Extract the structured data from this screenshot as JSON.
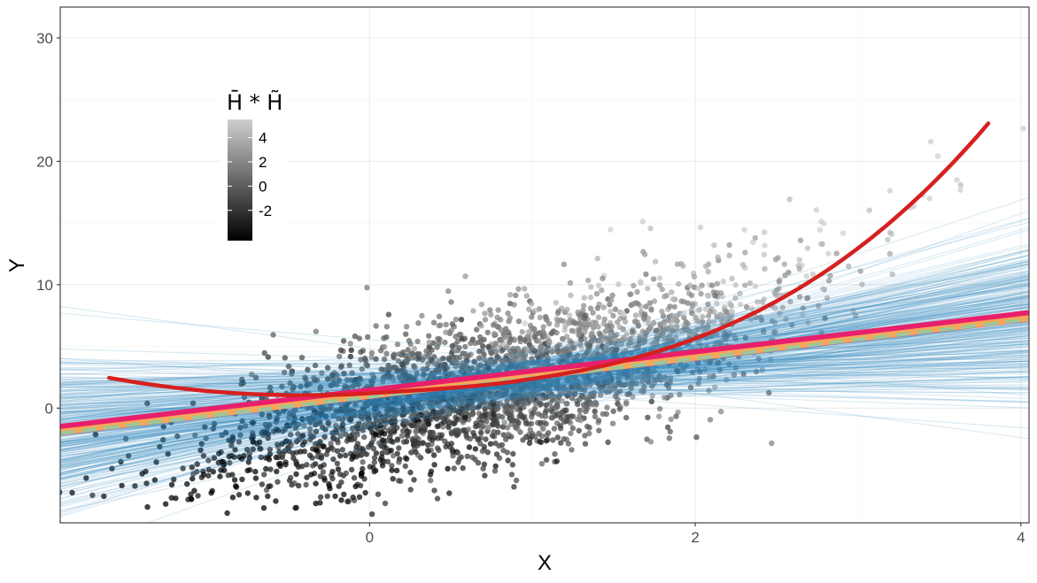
{
  "chart_data": {
    "type": "scatter",
    "xlabel": "X",
    "ylabel": "Y",
    "xlim": [
      -1.9,
      4.05
    ],
    "ylim": [
      -9.3,
      32.5
    ],
    "x_ticks": [
      0,
      2,
      4
    ],
    "y_ticks": [
      0,
      10,
      20,
      30
    ],
    "x_tick_labels": [
      "0",
      "2",
      "4"
    ],
    "y_tick_labels": [
      "0",
      "10",
      "20",
      "30"
    ],
    "grid": true,
    "legend": {
      "title": "H̄ * H̃",
      "placement": "top-left inside",
      "breaks": [
        4,
        2,
        0,
        -2
      ],
      "break_labels": [
        "4",
        "2",
        "0",
        "-2"
      ],
      "range": [
        -4.5,
        5.5
      ],
      "low_color": "#000000",
      "high_color": "#cfcfcf"
    },
    "points": {
      "count": 3200,
      "x_mean": 0.8,
      "x_sd": 0.85,
      "color_encodes": "H̄ * H̃"
    },
    "fits": {
      "line_count": 300,
      "line_color": "#2b83ba",
      "curve": {
        "a": 1.2,
        "b": 0.8,
        "c": 1.2,
        "d": 0.25,
        "x_range": [
          -1.6,
          3.8
        ],
        "color": "#d62020"
      },
      "pink_line": {
        "intercept": 1.2,
        "slope": 1.55,
        "color": "#e8206b"
      },
      "orange_line": {
        "intercept": 1.0,
        "slope": 1.55,
        "color": "#f6a65a"
      },
      "dashed_line": {
        "intercept": 0.9,
        "slope": 1.55,
        "color": "#9cc79a"
      }
    },
    "style": {
      "panel_border": "#333333",
      "grid_major": "#ebebeb",
      "grid_minor": "#f5f5f5",
      "tick_color": "#333333"
    }
  }
}
